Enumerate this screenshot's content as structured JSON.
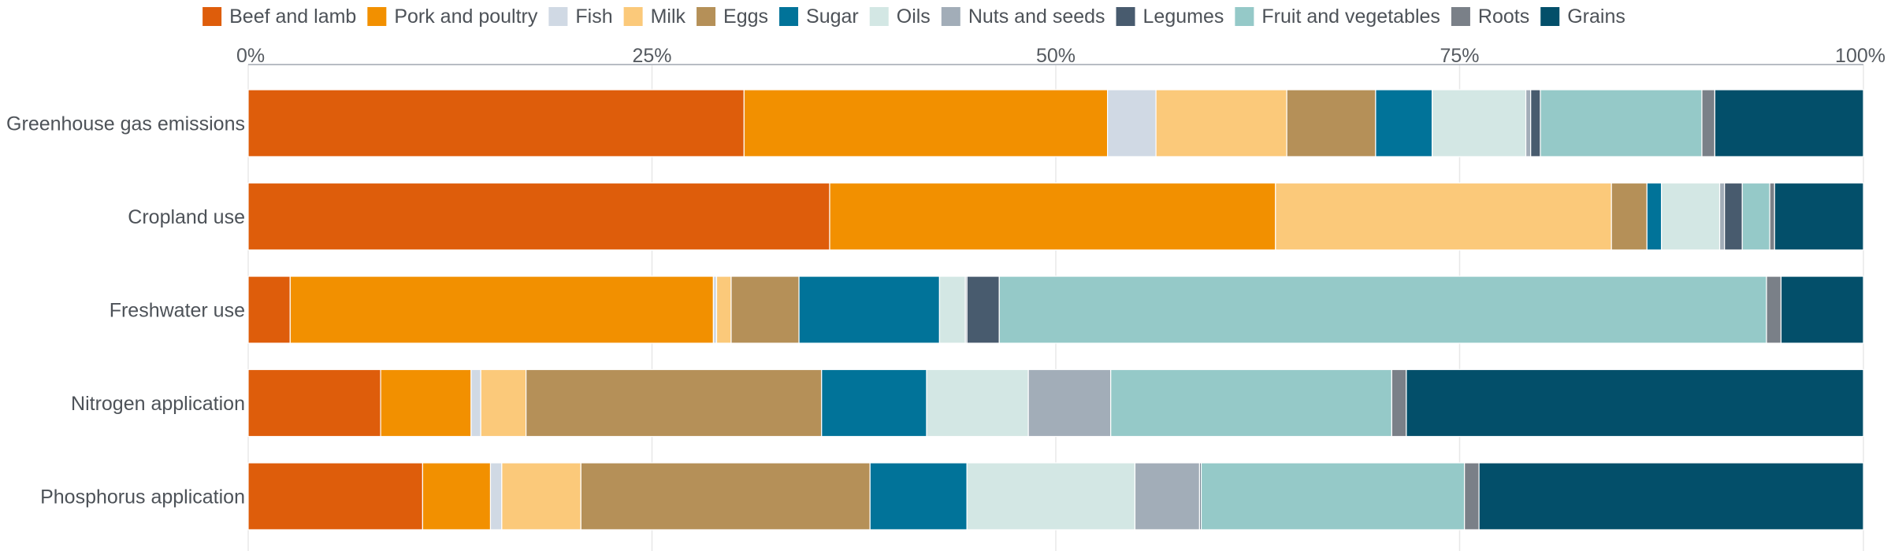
{
  "chart_data": {
    "type": "bar",
    "orientation": "horizontal",
    "stacked": true,
    "normalized": true,
    "title": "",
    "xlabel": "",
    "ylabel": "",
    "xlim": [
      0,
      100
    ],
    "x_ticks": [
      "0%",
      "25%",
      "50%",
      "75%",
      "100%"
    ],
    "x_tick_values": [
      0,
      25,
      50,
      75,
      100
    ],
    "x_axis_position": "top",
    "grid": true,
    "legend_position": "top",
    "categories": [
      "Greenhouse gas emissions",
      "Cropland use",
      "Freshwater use",
      "Nitrogen application",
      "Phosphorus application"
    ],
    "series": [
      {
        "name": "Beef and lamb",
        "color": "#de5d0b",
        "values": [
          30.7,
          36.0,
          2.6,
          8.2,
          10.8
        ]
      },
      {
        "name": "Pork and poultry",
        "color": "#f29000",
        "values": [
          22.5,
          27.6,
          26.2,
          5.6,
          4.2
        ]
      },
      {
        "name": "Fish",
        "color": "#d0d9e4",
        "values": [
          3.0,
          0.0,
          0.2,
          0.6,
          0.7
        ]
      },
      {
        "name": "Milk",
        "color": "#fbc97a",
        "values": [
          8.1,
          20.8,
          0.9,
          2.8,
          4.9
        ]
      },
      {
        "name": "Eggs",
        "color": "#b59058",
        "values": [
          5.5,
          2.2,
          4.2,
          18.3,
          17.9
        ]
      },
      {
        "name": "Sugar",
        "color": "#017399",
        "values": [
          3.5,
          0.9,
          8.7,
          6.5,
          6.0
        ]
      },
      {
        "name": "Oils",
        "color": "#d3e7e4",
        "values": [
          5.8,
          3.6,
          1.6,
          6.3,
          10.4
        ]
      },
      {
        "name": "Nuts and seeds",
        "color": "#a2adb8",
        "values": [
          0.3,
          0.3,
          0.1,
          5.1,
          4.0
        ]
      },
      {
        "name": "Legumes",
        "color": "#485b6e",
        "values": [
          0.6,
          1.1,
          2.0,
          0.0,
          0.1
        ]
      },
      {
        "name": "Fruit and vegetables",
        "color": "#95c9c8",
        "values": [
          10.0,
          1.7,
          47.5,
          17.4,
          16.3
        ]
      },
      {
        "name": "Roots",
        "color": "#7a8088",
        "values": [
          0.8,
          0.3,
          0.9,
          0.9,
          0.9
        ]
      },
      {
        "name": "Grains",
        "color": "#034f6a",
        "values": [
          9.2,
          5.5,
          5.1,
          28.3,
          23.8
        ]
      }
    ]
  }
}
